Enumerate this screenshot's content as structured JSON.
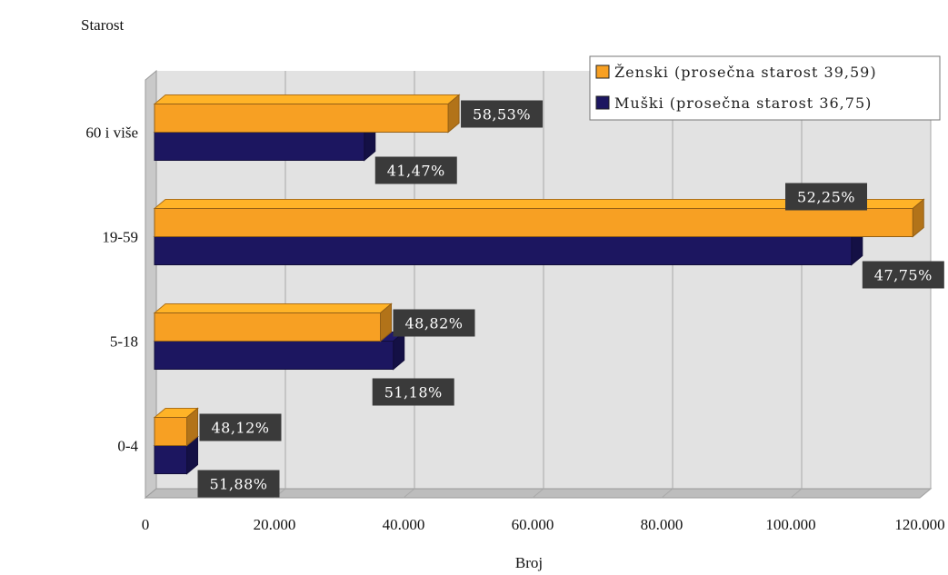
{
  "chart_data": {
    "type": "bar",
    "orientation": "horizontal",
    "ylabel": "Starost",
    "xlabel": "Broj",
    "categories": [
      "0-4",
      "5-18",
      "19-59",
      "60 i više"
    ],
    "xlim": [
      0,
      120000
    ],
    "x_ticks": [
      "0",
      "20.000",
      "40.000",
      "60.000",
      "80.000",
      "100.000",
      "120.000"
    ],
    "grid": true,
    "legend_position": "top-right",
    "series": [
      {
        "name": "Ženski (prosečna starost 39,59)",
        "color": "#f7a023",
        "values": [
          5000,
          35000,
          117500,
          45500
        ],
        "labels": [
          "48,12%",
          "48,82%",
          "52,25%",
          "58,53%"
        ]
      },
      {
        "name": "Muški (prosečna starost 36,75)",
        "color": "#1c1660",
        "values": [
          5000,
          37000,
          108000,
          32500
        ],
        "labels": [
          "51,88%",
          "51,18%",
          "47,75%",
          "41,47%"
        ]
      }
    ]
  }
}
